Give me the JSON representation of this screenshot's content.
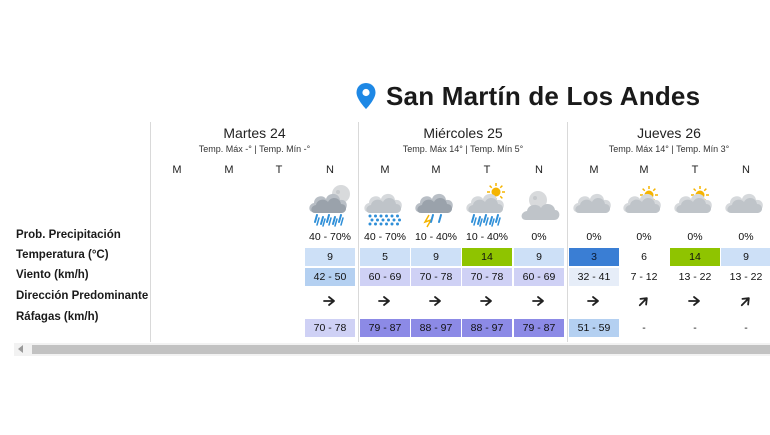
{
  "location": {
    "name": "San Martín de Los Andes",
    "icon": "map-pin-icon",
    "icon_color": "#1e88e5"
  },
  "days": [
    {
      "name": "Martes 24",
      "range": "Temp. Máx -° | Temp. Mín -°"
    },
    {
      "name": "Miércoles 25",
      "range": "Temp. Máx 14° | Temp. Mín 5°"
    },
    {
      "name": "Jueves 26",
      "range": "Temp. Máx 14° | Temp. Mín 3°"
    }
  ],
  "slots": [
    "M",
    "M",
    "T",
    "N",
    "M",
    "M",
    "T",
    "N",
    "M",
    "M",
    "T",
    "N"
  ],
  "row_labels": {
    "precip": "Prob. Precipitación",
    "temp": "Temperatura (°C)",
    "wind": "Viento (km/h)",
    "direction": "Dirección Predominante",
    "gusts": "Ráfagas (km/h)"
  },
  "icons": [
    "",
    "",
    "",
    "rain-night-icon",
    "hail-icon",
    "rain-cloud-icon",
    "rain-sun-icon",
    "cloudy-night-icon",
    "cloud-icon",
    "partly-cloudy-icon",
    "partly-cloudy-icon",
    "cloud-icon"
  ],
  "precip": [
    "",
    "",
    "",
    "40 - 70%",
    "40 - 70%",
    "10 - 40%",
    "10 - 40%",
    "0%",
    "0%",
    "0%",
    "0%",
    "0%"
  ],
  "temp": [
    "",
    "",
    "",
    "9",
    "5",
    "9",
    "14",
    "9",
    "3",
    "6",
    "14",
    "9"
  ],
  "wind": [
    "",
    "",
    "",
    "42 - 50",
    "60 - 69",
    "70 - 78",
    "70 - 78",
    "60 - 69",
    "32 - 41",
    "7 - 12",
    "13 - 22",
    "13 - 22"
  ],
  "direction": [
    "",
    "",
    "",
    "east-arrow-icon",
    "east-arrow-icon",
    "east-arrow-icon",
    "east-arrow-icon",
    "east-arrow-icon",
    "east-arrow-icon",
    "northeast-arrow-icon",
    "east-arrow-icon",
    "northeast-arrow-icon"
  ],
  "gusts": [
    "",
    "",
    "",
    "70 - 78",
    "79 - 87",
    "88 - 97",
    "88 - 97",
    "79 - 87",
    "51 - 59",
    "-",
    "-",
    "-"
  ],
  "colors": {
    "temp": [
      "",
      "",
      "",
      "#cde0f7",
      "#cde0f7",
      "#cde0f7",
      "#8fc400",
      "#cde0f7",
      "#3a7ed4",
      "#ffffff",
      "#8fc400",
      "#cde0f7"
    ],
    "wind": [
      "",
      "",
      "",
      "#b4d0f1",
      "#cfd1f5",
      "#cfd1f5",
      "#cfd1f5",
      "#cfd1f5",
      "#e6edf8",
      "#ffffff",
      "#ffffff",
      "#ffffff"
    ],
    "gusts": [
      "",
      "",
      "",
      "#cfd1f5",
      "#8c8ae6",
      "#8c8ae6",
      "#8c8ae6",
      "#8c8ae6",
      "#b4d0f1",
      "#ffffff",
      "#ffffff",
      "#ffffff"
    ]
  }
}
